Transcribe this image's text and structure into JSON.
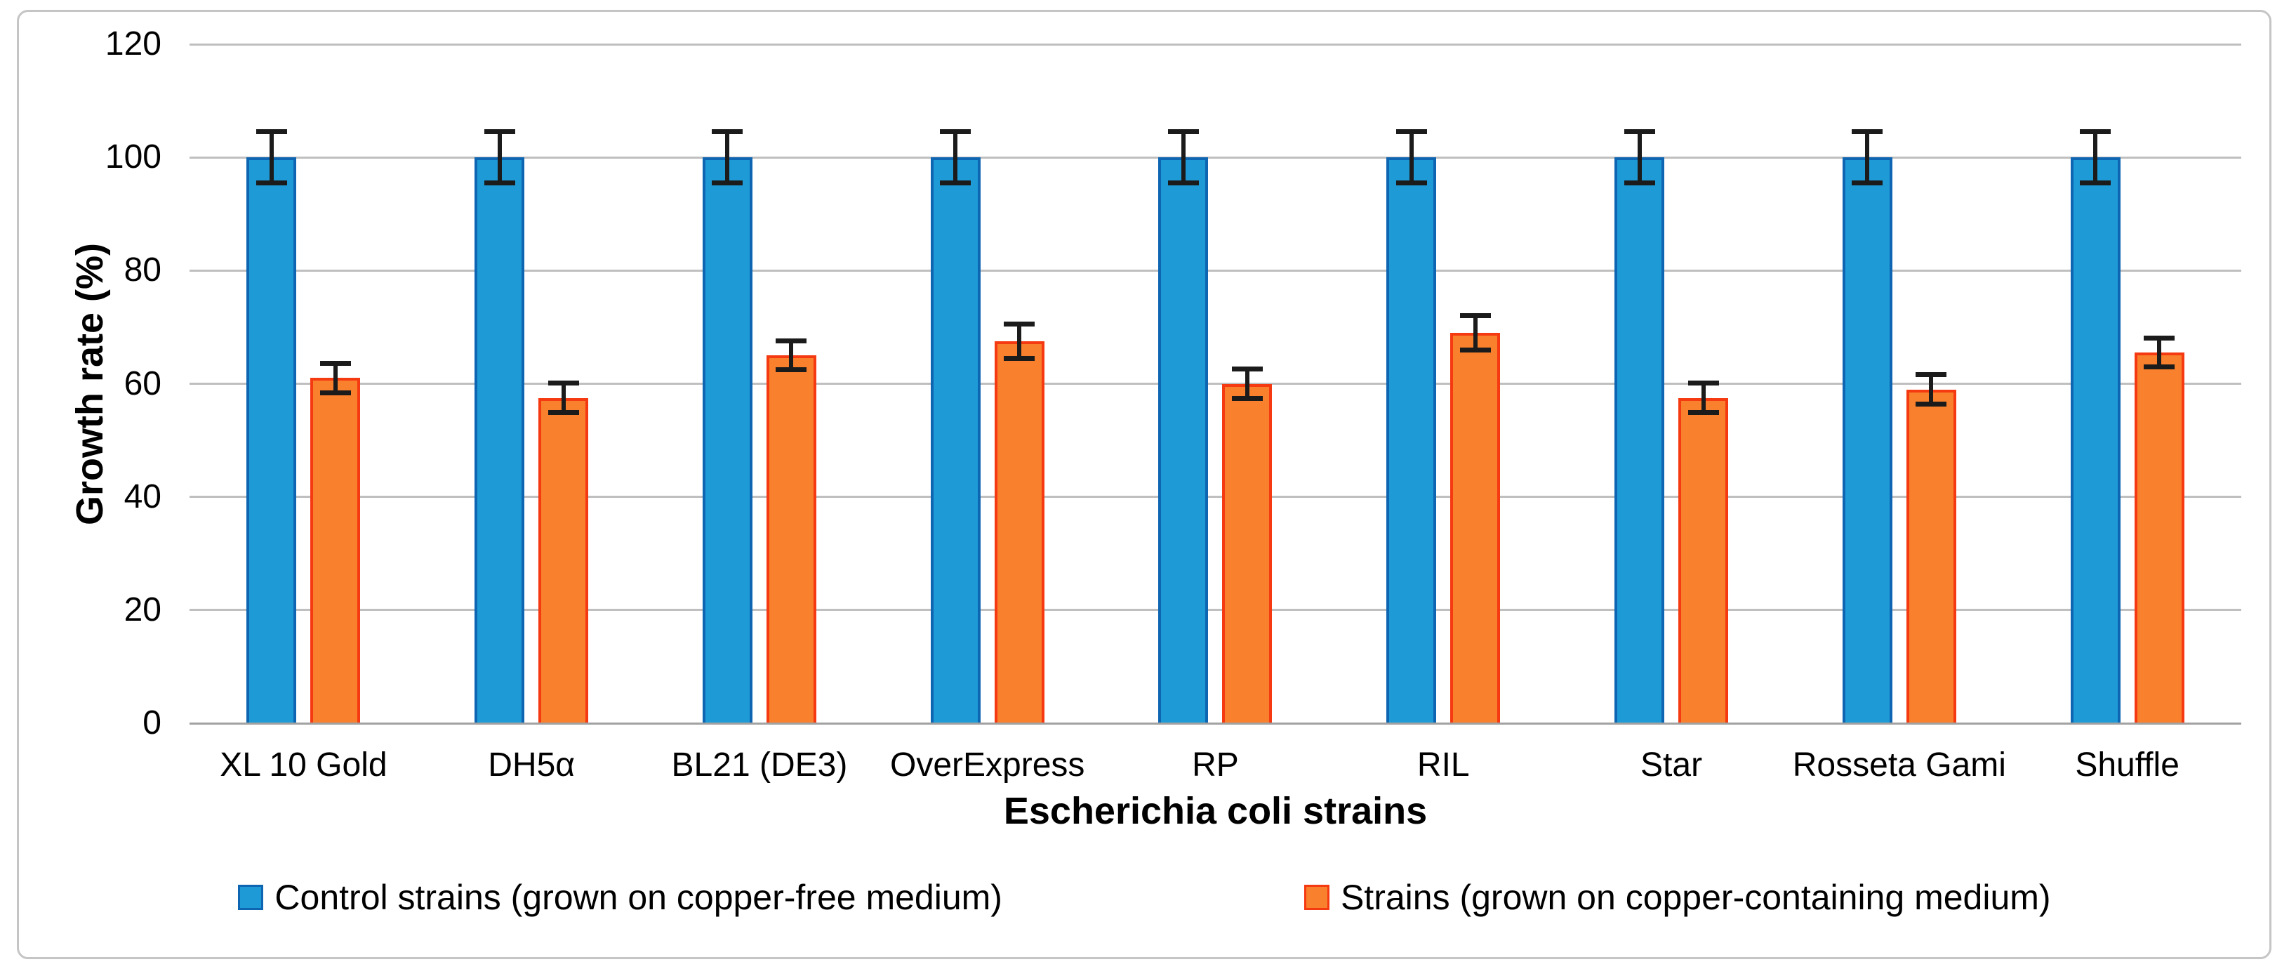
{
  "figure": {
    "frame_border_color": "#c5c5c5",
    "background": "#ffffff"
  },
  "chart_data": {
    "type": "bar",
    "title": "",
    "xlabel": "Escherichia coli strains",
    "ylabel": "Growth rate (%)",
    "ylim": [
      0,
      120
    ],
    "yticks": [
      0,
      20,
      40,
      60,
      80,
      100,
      120
    ],
    "grid": "horizontal",
    "gridline_color": "#bfbfbf",
    "axis_line_color": "#a2a2a2",
    "error_bar_color": "#1b1b1b",
    "legend_position": "bottom",
    "categories": [
      "XL 10 Gold",
      "DH5α",
      "BL21 (DE3)",
      "OverExpress",
      "RP",
      "RIL",
      "Star",
      "Rosseta Gami",
      "Shuffle"
    ],
    "series": [
      {
        "name": "Control strains (grown on copper-free medium)",
        "color": "#1e9bd7",
        "border_color": "#0e66b2",
        "values": [
          100,
          100,
          100,
          100,
          100,
          100,
          100,
          100,
          100
        ],
        "errors": [
          5,
          5,
          5,
          5,
          5,
          5,
          5,
          5,
          5
        ]
      },
      {
        "name": "Strains (grown on copper-containing medium)",
        "color": "#f9802c",
        "border_color": "#f53a12",
        "values": [
          61,
          57.5,
          65,
          67.5,
          60,
          69,
          57.5,
          59,
          65.5
        ],
        "errors": [
          3,
          3,
          3,
          3.5,
          3,
          3.5,
          3,
          3,
          3
        ]
      }
    ]
  }
}
